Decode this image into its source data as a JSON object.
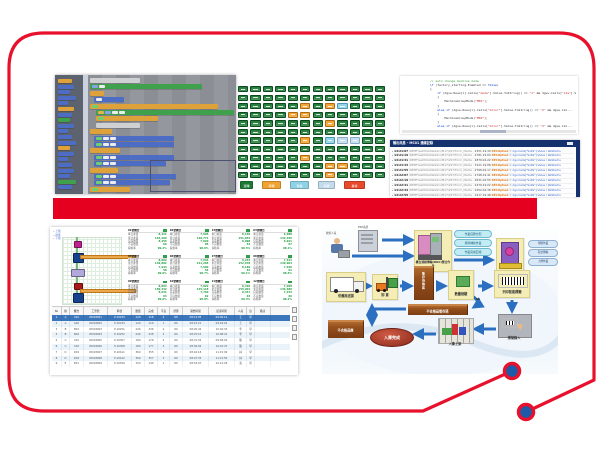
{
  "slide": {
    "bg": "#ffffff",
    "frame_color": "#e8112d",
    "accent_bar_color": "#e50020",
    "node_color": "#1f5aa8"
  },
  "blockly": {
    "palette": [
      [
        14,
        "o"
      ],
      [
        16,
        "b"
      ],
      [
        12,
        "b"
      ],
      [
        18,
        "b"
      ],
      [
        10,
        "b"
      ],
      [
        16,
        "o"
      ],
      [
        14,
        "b"
      ],
      [
        12,
        "g"
      ],
      [
        16,
        "b"
      ],
      [
        10,
        "b"
      ],
      [
        14,
        "b"
      ],
      [
        18,
        "b"
      ],
      [
        12,
        "o"
      ],
      [
        16,
        "b"
      ],
      [
        10,
        "b"
      ],
      [
        14,
        "b"
      ],
      [
        16,
        "b"
      ],
      [
        12,
        "b"
      ],
      [
        18,
        "g"
      ],
      [
        14,
        "b"
      ]
    ],
    "canvas_rows": [
      [
        2,
        50,
        "w",
        ""
      ],
      [
        2,
        112,
        "g",
        "bw"
      ],
      [
        2,
        14,
        "o",
        ""
      ],
      [
        6,
        30,
        "b",
        "w"
      ],
      [
        2,
        128,
        "o",
        "g"
      ],
      [
        8,
        138,
        "g",
        "obww"
      ],
      [
        8,
        62,
        "o",
        "g"
      ],
      [
        8,
        44,
        "w",
        ""
      ],
      [
        2,
        22,
        "o",
        ""
      ],
      [
        6,
        80,
        "b",
        "gww"
      ],
      [
        6,
        80,
        "b",
        "gww"
      ],
      [
        2,
        30,
        "o",
        ""
      ],
      [
        6,
        80,
        "b",
        "gww"
      ],
      [
        6,
        72,
        "b",
        "gww"
      ],
      [
        2,
        28,
        "o",
        ""
      ],
      [
        6,
        82,
        "b",
        "gww"
      ],
      [
        6,
        76,
        "b",
        "gww"
      ],
      [
        2,
        40,
        "o",
        "g"
      ]
    ]
  },
  "status_board": {
    "rows": [
      "GGGGGGGGGGGG",
      "GGGGGGGGGGGG",
      "GGGGGOGOCGGG",
      "GGGGOOGGGGGG",
      "GGGGGGGOGGGG",
      "GGGGGGGGGGGG",
      "GGGGGOGCBBGG",
      "GGGGGGGGGGGG",
      "GGGGGOGGGGGG",
      "GGGGGGGOOGGG",
      "GGGGGGGOGGGG"
    ],
    "legend": [
      {
        "color": "#1d7a35",
        "label": "運轉",
        "width": 13
      },
      {
        "color": "#f0a330",
        "label": "待機",
        "width": 19
      },
      {
        "color": "#8fd2e6",
        "label": "保養",
        "width": 19
      },
      {
        "color": "#c2dcee",
        "label": "停機",
        "width": 17
      },
      {
        "color": "#e84a2c",
        "label": "異常",
        "width": 21
      }
    ]
  },
  "code_editor": {
    "lines": [
      [
        [
          "// auto change machine mode",
          "c"
        ]
      ],
      [
        [
          "if ",
          "k"
        ],
        [
          "(factory_starting.Enabled == ",
          "p"
        ],
        [
          "false",
          "k"
        ],
        [
          ")",
          "p"
        ]
      ],
      [
        [
          "{",
          "p"
        ]
      ],
      [
        [
          "    if ",
          "k"
        ],
        [
          "(dgvw.Rows[i].Cells[",
          "p"
        ],
        [
          "\"mode\"",
          "s"
        ],
        [
          "].Value.ToString() == ",
          "p"
        ],
        [
          "\"1\"",
          "s"
        ],
        [
          " && dgvw.Cells[",
          "p"
        ],
        [
          "\"sta\"",
          "s"
        ],
        [
          "].Va...",
          "p"
        ]
      ],
      [
        [
          "    {",
          "p"
        ]
      ],
      [
        [
          "        MachineGroupMode(",
          "p"
        ],
        [
          "\"M01\"",
          "s"
        ],
        [
          ");",
          "p"
        ]
      ],
      [
        [
          "    }",
          "p"
        ]
      ],
      [
        [
          "    else if ",
          "k"
        ],
        [
          "(dgvw.Rows[i].Cells[",
          "p"
        ],
        [
          "\"Color\"",
          "s"
        ],
        [
          "].Value.ToString() == ",
          "p"
        ],
        [
          "\"2\"",
          "s"
        ],
        [
          " && dgvw.Cel...",
          "p"
        ]
      ],
      [
        [
          "    {",
          "p"
        ]
      ],
      [
        [
          "        MachineGroupMode(",
          "p"
        ],
        [
          "\"M02\"",
          "s"
        ],
        [
          ");",
          "p"
        ]
      ],
      [
        [
          "    }",
          "p"
        ]
      ],
      [
        [
          "    else if ",
          "k"
        ],
        [
          "(dgvw.Rows[i].Cells[",
          "p"
        ],
        [
          "\"Color\"",
          "s"
        ],
        [
          "].Value.ToString() == ",
          "p"
        ],
        [
          "\"3\"",
          "s"
        ],
        [
          " && dgvw.Cel...",
          "p"
        ]
      ]
    ]
  },
  "log": {
    "title": "輸出訊息 - MC01 連線記錄",
    "path": "\\REMF\\wsMcKsDataSrv\\M17\\297\\Form_Media - ",
    "key": "RECOptied",
    "tail": "= dgv.Cells[\"SoPa\"].Value \\ ReStachs",
    "rows": [
      {
        "time": "14:21:07",
        "num": "2351.19.39"
      },
      {
        "time": "14:21:19",
        "num": "2781.19.04"
      },
      {
        "time": "14:21:31",
        "num": "2879.04.22"
      },
      {
        "time": "14:21:43",
        "num": "3121.19.08"
      },
      {
        "time": "14:21:55",
        "num": "2766.04.17"
      },
      {
        "time": "14:22:07",
        "num": "2748.19.41"
      },
      {
        "time": "14:22:19",
        "num": "2631.04.55"
      },
      {
        "time": "14:22:31",
        "num": "2479.19.02"
      },
      {
        "time": "14:22:43",
        "num": "2452.04.36"
      },
      {
        "time": "14:22:55",
        "num": "2417.19.48"
      }
    ]
  },
  "monitor": {
    "legend_lines": "─ 上限\n─ 標準\n─ 下限",
    "row_labels": [
      "本日產量",
      "累計產量",
      "良品數量",
      "不良數量",
      "稼動率"
    ],
    "groups": [
      {
        "t": "01號機台",
        "v": [
          "8,321",
          "154,209",
          "8,255",
          "66",
          "99.2%"
        ]
      },
      {
        "t": "02號機台",
        "v": [
          "7,905",
          "148,771",
          "7,820",
          "85",
          "98.9%"
        ]
      },
      {
        "t": "03號機台",
        "v": [
          "8,140",
          "151,033",
          "8,098",
          "42",
          "99.5%"
        ]
      },
      {
        "t": "04號機台",
        "v": [
          "6,988",
          "132,456",
          "6,921",
          "67",
          "98.1%"
        ]
      },
      {
        "t": "05號機台",
        "v": [
          "8,002",
          "149,882",
          "7,944",
          "58",
          "99.0%"
        ]
      },
      {
        "t": "06號機台",
        "v": [
          "7,644",
          "141,205",
          "7,590",
          "54",
          "98.7%"
        ]
      },
      {
        "t": "07號機台",
        "v": [
          "8,233",
          "152,678",
          "8,169",
          "64",
          "99.1%"
        ]
      },
      {
        "t": "08號機台",
        "v": [
          "7,511",
          "139,904",
          "7,450",
          "61",
          "98.5%"
        ]
      },
      {
        "t": "09號機台",
        "v": [
          "8,094",
          "150,342",
          "8,031",
          "63",
          "99.0%"
        ]
      },
      {
        "t": "10號機台",
        "v": [
          "7,822",
          "145,118",
          "7,760",
          "62",
          "98.8%"
        ]
      },
      {
        "t": "11號機台",
        "v": [
          "8,410",
          "155,901",
          "8,347",
          "63",
          "99.3%"
        ]
      },
      {
        "t": "12號機台",
        "v": [
          "7,299",
          "136,480",
          "7,233",
          "66",
          "98.2%"
        ]
      }
    ],
    "table": {
      "headers": [
        "No",
        "線",
        "機台",
        "工單號",
        "料號",
        "數量",
        "完成",
        "不良",
        "狀態",
        "開始時間",
        "結束時間",
        "人員",
        "班",
        "備註"
      ],
      "rows": [
        [
          "1",
          "A",
          "A01",
          "WO18001",
          "P-10233",
          "120",
          "118",
          "2",
          "OK",
          "08:12:05",
          "09:40:12",
          "王",
          "早",
          ""
        ],
        [
          "2",
          "A",
          "A02",
          "WO18002",
          "P-10234",
          "120",
          "119",
          "1",
          "OK",
          "08:15:21",
          "09:44:02",
          "王",
          "早",
          ""
        ],
        [
          "3",
          "B",
          "B01",
          "WO18003",
          "P-10251",
          "240",
          "236",
          "4",
          "OK",
          "08:20:44",
          "10:02:33",
          "李",
          "早",
          ""
        ],
        [
          "4",
          "B",
          "B02",
          "WO18004",
          "P-10252",
          "240",
          "238",
          "2",
          "OK",
          "08:25:10",
          "10:08:41",
          "李",
          "早",
          ""
        ],
        [
          "5",
          "C",
          "C01",
          "WO18005",
          "P-10307",
          "180",
          "178",
          "2",
          "OK",
          "08:31:55",
          "09:58:20",
          "陳",
          "早",
          ""
        ],
        [
          "6",
          "C",
          "C02",
          "WO18006",
          "P-10308",
          "180",
          "177",
          "3",
          "OK",
          "08:36:02",
          "10:01:47",
          "陳",
          "早",
          ""
        ],
        [
          "7",
          "D",
          "D01",
          "WO18007",
          "P-10411",
          "360",
          "355",
          "5",
          "OK",
          "08:42:18",
          "11:15:09",
          "林",
          "早",
          ""
        ],
        [
          "8",
          "D",
          "D02",
          "WO18008",
          "P-10412",
          "360",
          "357",
          "3",
          "OK",
          "08:47:33",
          "11:21:50",
          "林",
          "早",
          ""
        ],
        [
          "9",
          "E",
          "E01",
          "WO18009",
          "P-10520",
          "150",
          "149",
          "1",
          "OK",
          "08:52:07",
          "10:12:28",
          "張",
          "早",
          ""
        ]
      ]
    }
  },
  "flowchart": {
    "arrow_color": "#2b6fc0",
    "labels": {
      "person": "收料人員",
      "server": "ERP系統",
      "cluster_caption": "機台連線傳輸(DNC)整合作業",
      "truck": "供應商送貨",
      "unload": "卸 貨",
      "staging": "暫存待檢區",
      "inspect": "數量檢驗",
      "barcode": "列印智能標籤",
      "scan": "掃描錄入",
      "shelf": "入庫上架",
      "done": "入庫完成",
      "ng": "NG",
      "ng_area": "不合格品暫存區",
      "ng_store": "不合格品庫"
    },
    "cluster_tags": [
      "作業任務分配",
      "資料轉換作業",
      "作業完成回報"
    ],
    "machine_tags": [
      "現場作業",
      "程式傳輸",
      "上傳作業"
    ]
  }
}
